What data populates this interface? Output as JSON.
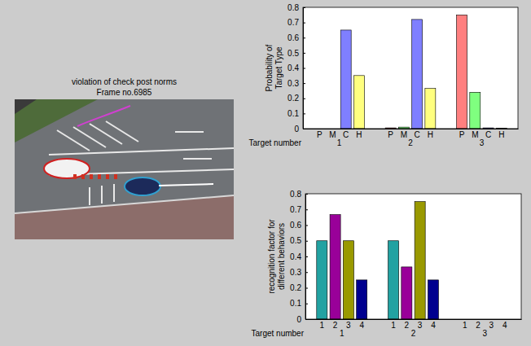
{
  "image": {
    "title": "violation of check post norms",
    "subtitle": "Frame no.6985"
  },
  "chart_data": [
    {
      "type": "bar",
      "y_label": "Probability of Target Type",
      "x_label": "Target number",
      "categories": [
        "1",
        "2",
        "3"
      ],
      "series": [
        {
          "name": "P",
          "color": "#ff7f7f",
          "values": [
            0,
            0.005,
            0.75
          ]
        },
        {
          "name": "M",
          "color": "#7fff7f",
          "values": [
            0,
            0.01,
            0.24
          ]
        },
        {
          "name": "C",
          "color": "#7f7fff",
          "values": [
            0.65,
            0.72,
            0.005
          ]
        },
        {
          "name": "H",
          "color": "#ffff7f",
          "values": [
            0.35,
            0.265,
            0.003
          ]
        }
      ],
      "ylim": [
        0,
        0.8
      ],
      "yticks": [
        0,
        0.1,
        0.2,
        0.3,
        0.4,
        0.5,
        0.6,
        0.7,
        0.8
      ],
      "grid": false
    },
    {
      "type": "bar",
      "y_label": "recognition factor for different behaviors",
      "x_label": "Target number",
      "categories": [
        "1",
        "2",
        "3"
      ],
      "series": [
        {
          "name": "1",
          "color": "#22a2a2",
          "values": [
            0.5,
            0.5,
            0
          ]
        },
        {
          "name": "2",
          "color": "#990099",
          "values": [
            0.667,
            0.333,
            0
          ]
        },
        {
          "name": "3",
          "color": "#999900",
          "values": [
            0.5,
            0.75,
            0
          ]
        },
        {
          "name": "4",
          "color": "#00008f",
          "values": [
            0.25,
            0.25,
            0
          ]
        }
      ],
      "ylim": [
        0,
        0.8
      ],
      "yticks": [
        0,
        0.1,
        0.2,
        0.3,
        0.4,
        0.5,
        0.6,
        0.7,
        0.8
      ],
      "grid": false
    }
  ]
}
